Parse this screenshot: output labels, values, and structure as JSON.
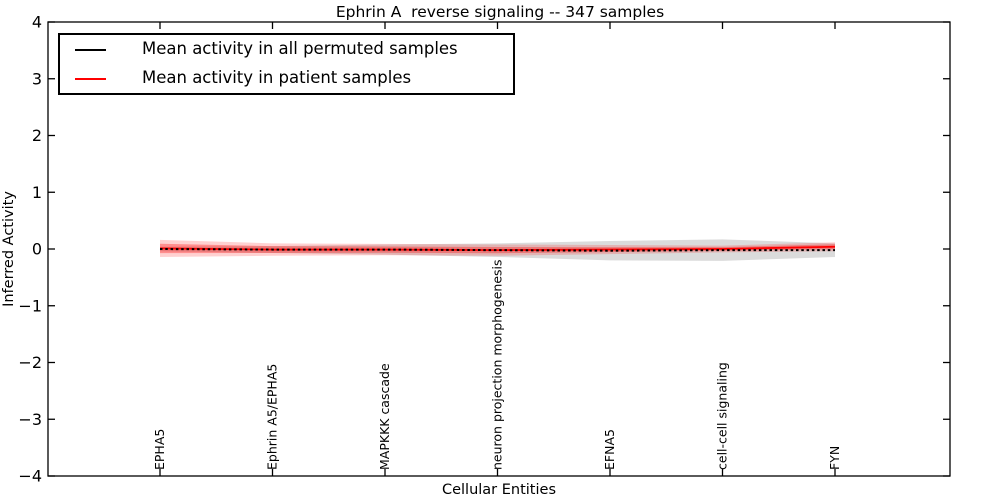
{
  "title": "Ephrin A  reverse signaling -- 347 samples",
  "legend": {
    "position": "upper left",
    "items": [
      {
        "label": "Mean activity in all permuted samples",
        "color": "#000000"
      },
      {
        "label": "Mean activity in patient samples",
        "color": "#ff0000"
      }
    ]
  },
  "axes": {
    "xlabel": "Cellular Entities",
    "ylabel": "Inferred Activity",
    "ylim": [
      -4,
      4
    ],
    "ytick_labels": [
      "4",
      "3",
      "2",
      "1",
      "0",
      "−1",
      "−2",
      "−3",
      "−4"
    ]
  },
  "chart_data": {
    "type": "line",
    "title": "Ephrin A  reverse signaling -- 347 samples",
    "xlabel": "Cellular Entities",
    "ylabel": "Inferred Activity",
    "ylim": [
      -4,
      4
    ],
    "yticks": [
      4,
      3,
      2,
      1,
      0,
      -1,
      -2,
      -3,
      -4
    ],
    "ytick_labels": [
      "4",
      "3",
      "2",
      "1",
      "0",
      "−1",
      "−2",
      "−3",
      "−4"
    ],
    "grid": false,
    "legend_position": "upper left",
    "categories": [
      "EPHA5",
      "Ephrin A5/EPHA5",
      "MAPKKK cascade",
      "neuron projection morphogenesis",
      "EFNA5",
      "cell-cell signaling",
      "FYN"
    ],
    "series": [
      {
        "name": "Mean activity in all permuted samples",
        "color": "#000000",
        "linestyle": "dotted",
        "values": [
          0.0,
          -0.01,
          -0.01,
          -0.02,
          -0.03,
          -0.02,
          -0.02
        ],
        "band_halfwidth": [
          0.04,
          0.06,
          0.09,
          0.12,
          0.17,
          0.19,
          0.12
        ],
        "band_color": "#888888"
      },
      {
        "name": "Mean activity in patient samples",
        "color": "#ff0000",
        "linestyle": "solid",
        "values": [
          0.01,
          -0.01,
          -0.01,
          -0.02,
          -0.01,
          0.0,
          0.04
        ],
        "band_halfwidth": [
          0.15,
          0.11,
          0.1,
          0.1,
          0.08,
          0.06,
          0.08
        ],
        "band_color": "#ff0000"
      }
    ]
  }
}
